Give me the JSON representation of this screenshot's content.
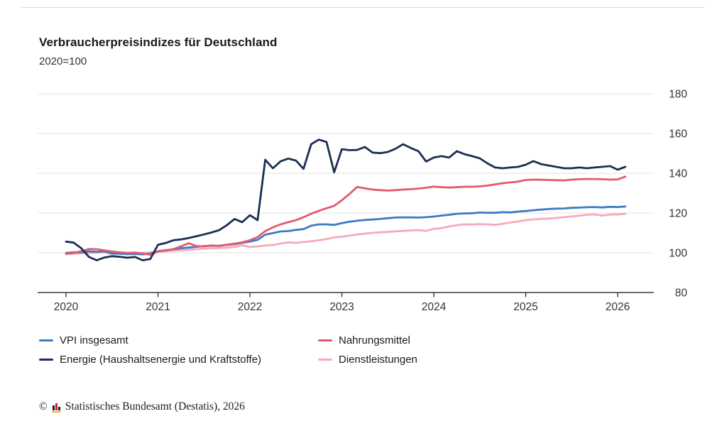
{
  "page": {
    "title": "Verbraucherpreisindizes für Deutschland",
    "subtitle": "2020=100"
  },
  "footer": {
    "copyright": "©",
    "source": "Statistisches Bundesamt (Destatis), 2026",
    "logo": {
      "name": "destatis-logo",
      "bar_colors": [
        "#1a1a1a",
        "#d71920",
        "#1a1a1a"
      ],
      "base_color": "#f3b229",
      "bar_heights": [
        7,
        10,
        5
      ]
    }
  },
  "legend": {
    "items": [
      {
        "label": "VPI insgesamt",
        "color": "#3d7ac4"
      },
      {
        "label": "Nahrungsmittel",
        "color": "#e35a6d"
      },
      {
        "label": "Energie (Haushaltsenergie und Kraftstoffe)",
        "color": "#1c2e52"
      },
      {
        "label": "Dienstleistungen",
        "color": "#f5abb9"
      }
    ]
  },
  "chart_data": {
    "type": "line",
    "title": "Verbraucherpreisindizes für Deutschland",
    "subtitle": "2020=100",
    "frequency": "monthly",
    "x_start": "2020-01",
    "x_end": "2026-02",
    "x_tick_labels": [
      "2020",
      "2021",
      "2022",
      "2023",
      "2024",
      "2025",
      "2026"
    ],
    "y_ticks": [
      80,
      100,
      120,
      140,
      160,
      180
    ],
    "ylim": [
      80,
      180
    ],
    "y_axis_side": "right",
    "grid": "horizontal",
    "grid_color": "#e2e2e2",
    "axis_color": "#3a3a3a",
    "tick_label_color": "#333333",
    "series": [
      {
        "name": "VPI insgesamt",
        "color": "#3d7ac4",
        "values": [
          99.9,
          100.2,
          100.3,
          100.7,
          100.5,
          100.7,
          99.6,
          99.5,
          99.3,
          99.4,
          99.2,
          99.6,
          100.8,
          101.3,
          101.8,
          102.3,
          102.6,
          103.0,
          103.4,
          103.5,
          103.5,
          104.0,
          104.3,
          105.0,
          105.6,
          106.5,
          109.1,
          109.9,
          110.7,
          110.9,
          111.5,
          111.9,
          113.6,
          114.3,
          114.3,
          114.0,
          114.9,
          115.6,
          116.1,
          116.5,
          116.7,
          117.0,
          117.4,
          117.7,
          117.8,
          117.8,
          117.7,
          117.9,
          118.2,
          118.7,
          119.1,
          119.6,
          119.8,
          119.9,
          120.2,
          120.1,
          120.1,
          120.4,
          120.3,
          120.7,
          121.0,
          121.4,
          121.7,
          122.0,
          122.2,
          122.3,
          122.6,
          122.7,
          122.9,
          123.0,
          122.8,
          123.1,
          123.0,
          123.3
        ]
      },
      {
        "name": "Nahrungsmittel",
        "color": "#e35a6d",
        "values": [
          99.6,
          99.9,
          100.8,
          101.9,
          101.8,
          101.2,
          100.6,
          100.2,
          99.9,
          100.1,
          99.6,
          99.0,
          100.6,
          101.2,
          101.8,
          103.2,
          104.8,
          103.4,
          103.2,
          103.7,
          103.4,
          104.0,
          104.6,
          105.2,
          106.3,
          107.9,
          110.9,
          112.8,
          114.3,
          115.4,
          116.4,
          117.9,
          119.6,
          121.1,
          122.4,
          123.6,
          126.4,
          129.6,
          133.1,
          132.4,
          131.8,
          131.5,
          131.3,
          131.5,
          131.8,
          132.0,
          132.3,
          132.7,
          133.3,
          133.0,
          132.8,
          133.0,
          133.2,
          133.2,
          133.4,
          133.8,
          134.4,
          135.0,
          135.4,
          135.8,
          136.6,
          136.8,
          136.7,
          136.6,
          136.5,
          136.4,
          136.8,
          137.0,
          137.1,
          137.1,
          137.0,
          136.8,
          136.9,
          138.3
        ]
      },
      {
        "name": "Energie (Haushaltsenergie und Kraftstoffe)",
        "color": "#1c2e52",
        "values": [
          105.6,
          105.1,
          102.2,
          97.9,
          96.2,
          97.6,
          98.3,
          98.0,
          97.5,
          97.9,
          96.2,
          96.9,
          104.0,
          104.9,
          106.3,
          106.7,
          107.4,
          108.3,
          109.2,
          110.2,
          111.4,
          113.9,
          117.0,
          115.4,
          118.9,
          116.4,
          146.8,
          142.5,
          146.0,
          147.4,
          146.4,
          142.2,
          154.6,
          156.9,
          155.7,
          140.5,
          152.1,
          151.6,
          151.7,
          153.2,
          150.4,
          150.1,
          150.7,
          152.3,
          154.6,
          152.7,
          151.1,
          145.9,
          147.9,
          148.6,
          147.9,
          151.1,
          149.6,
          148.6,
          147.5,
          145.0,
          142.9,
          142.5,
          142.9,
          143.2,
          144.3,
          146.1,
          144.6,
          143.9,
          143.2,
          142.5,
          142.5,
          142.9,
          142.5,
          142.9,
          143.2,
          143.6,
          141.8,
          143.2
        ]
      },
      {
        "name": "Dienstleistungen",
        "color": "#f5abb9",
        "values": [
          99.2,
          99.5,
          99.7,
          99.9,
          100.0,
          100.2,
          99.6,
          99.8,
          99.6,
          99.8,
          100.0,
          100.1,
          100.6,
          100.8,
          101.0,
          101.2,
          101.5,
          101.8,
          102.1,
          102.3,
          102.4,
          102.6,
          102.9,
          103.8,
          102.9,
          103.2,
          103.6,
          103.9,
          104.6,
          105.2,
          105.0,
          105.4,
          105.8,
          106.3,
          106.9,
          107.7,
          108.1,
          108.6,
          109.2,
          109.6,
          110.0,
          110.3,
          110.5,
          110.8,
          111.0,
          111.2,
          111.4,
          111.0,
          112.0,
          112.4,
          113.2,
          113.9,
          114.3,
          114.2,
          114.4,
          114.3,
          114.0,
          114.6,
          115.2,
          115.7,
          116.4,
          116.8,
          117.0,
          117.2,
          117.5,
          117.9,
          118.3,
          118.6,
          119.1,
          119.3,
          118.7,
          119.2,
          119.3,
          119.6
        ]
      }
    ]
  }
}
